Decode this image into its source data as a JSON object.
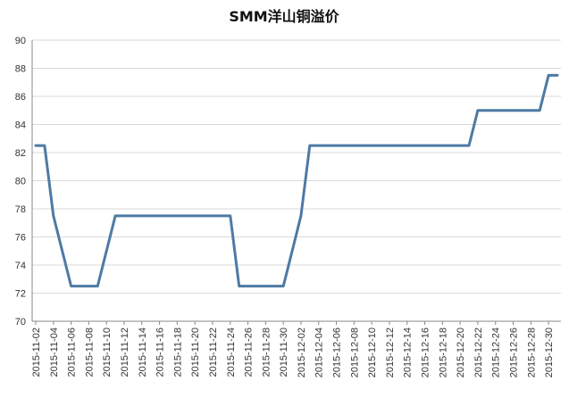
{
  "chart_data": {
    "type": "line",
    "title": "SMM洋山铜溢价",
    "xlabel": "",
    "ylabel": "",
    "ylim": [
      70,
      90
    ],
    "y_ticks": [
      "70",
      "72",
      "74",
      "76",
      "78",
      "80",
      "82",
      "84",
      "86",
      "88",
      "90"
    ],
    "grid": "horizontal",
    "legend": "none",
    "colors": {
      "line": "#4e7aa5",
      "grid": "#d9d9d9",
      "axis": "#888888"
    },
    "x_tick_labels": [
      "2015-11-02",
      "2015-11-04",
      "2015-11-06",
      "2015-11-08",
      "2015-11-10",
      "2015-11-12",
      "2015-11-14",
      "2015-11-16",
      "2015-11-18",
      "2015-11-20",
      "2015-11-22",
      "2015-11-24",
      "2015-11-26",
      "2015-11-28",
      "2015-11-30",
      "2015-12-02",
      "2015-12-04",
      "2015-12-06",
      "2015-12-08",
      "2015-12-10",
      "2015-12-12",
      "2015-12-14",
      "2015-12-16",
      "2015-12-18",
      "2015-12-20",
      "2015-12-22",
      "2015-12-24",
      "2015-12-26",
      "2015-12-28",
      "2015-12-30"
    ],
    "series": [
      {
        "x": [
          "2015-11-02",
          "2015-11-03",
          "2015-11-04",
          "2015-11-05",
          "2015-11-06",
          "2015-11-09",
          "2015-11-10",
          "2015-11-11",
          "2015-11-23",
          "2015-11-24",
          "2015-11-25",
          "2015-11-30",
          "2015-12-01",
          "2015-12-02",
          "2015-12-03",
          "2015-12-21",
          "2015-12-22",
          "2015-12-29",
          "2015-12-30",
          "2015-12-31"
        ],
        "values": [
          82.5,
          82.5,
          77.5,
          75,
          72.5,
          72.5,
          75,
          77.5,
          77.5,
          77.5,
          72.5,
          72.5,
          75,
          77.5,
          82.5,
          82.5,
          85,
          85,
          87.5,
          87.5
        ]
      }
    ]
  }
}
